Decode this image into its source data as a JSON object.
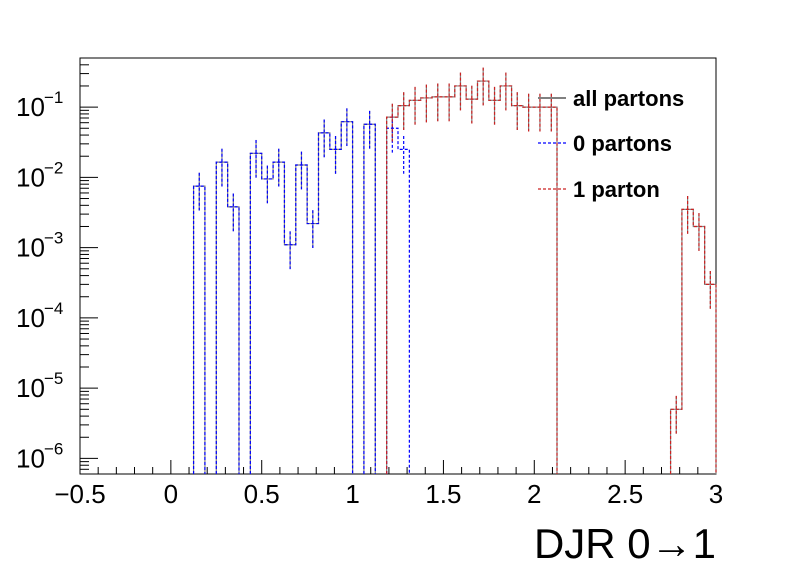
{
  "chart_data": {
    "type": "step-histogram",
    "xlabel": "DJR 0→1",
    "xlim": [
      -0.5,
      3.0
    ],
    "ylim": [
      6e-07,
      0.5
    ],
    "y_scale": "log",
    "grid": false,
    "legend_position": "top-right",
    "x_ticks": [
      "−0.5",
      "0",
      "0.5",
      "1",
      "1.5",
      "2",
      "2.5",
      "3"
    ],
    "x_tick_values": [
      -0.5,
      0,
      0.5,
      1,
      1.5,
      2,
      2.5,
      3
    ],
    "y_ticks": [
      {
        "base": "10",
        "exp": "−6",
        "value": 1e-06
      },
      {
        "base": "10",
        "exp": "−5",
        "value": 1e-05
      },
      {
        "base": "10",
        "exp": "−4",
        "value": 0.0001
      },
      {
        "base": "10",
        "exp": "−3",
        "value": 0.001
      },
      {
        "base": "10",
        "exp": "−2",
        "value": 0.01
      },
      {
        "base": "10",
        "exp": "−1",
        "value": 0.1
      }
    ],
    "bin_width": 0.0625,
    "series": [
      {
        "name": "all partons",
        "color": "#808080",
        "style": "solid",
        "bins": [
          [
            0.125,
            0.0075
          ],
          [
            0.25,
            0.0165
          ],
          [
            0.3125,
            0.0038
          ],
          [
            0.4375,
            0.022
          ],
          [
            0.5,
            0.0095
          ],
          [
            0.5625,
            0.0165
          ],
          [
            0.625,
            0.0011
          ],
          [
            0.6875,
            0.015
          ],
          [
            0.75,
            0.0022
          ],
          [
            0.8125,
            0.043
          ],
          [
            0.875,
            0.025
          ],
          [
            0.9375,
            0.062
          ],
          [
            1.0625,
            0.057
          ],
          [
            1.1875,
            0.072
          ],
          [
            1.25,
            0.105
          ],
          [
            1.3125,
            0.125
          ],
          [
            1.375,
            0.135
          ],
          [
            1.4375,
            0.14
          ],
          [
            1.5,
            0.14
          ],
          [
            1.5625,
            0.2
          ],
          [
            1.625,
            0.13
          ],
          [
            1.6875,
            0.235
          ],
          [
            1.75,
            0.125
          ],
          [
            1.8125,
            0.2
          ],
          [
            1.875,
            0.105
          ],
          [
            1.9375,
            0.1
          ],
          [
            2.0,
            0.1
          ],
          [
            2.0625,
            0.1
          ],
          [
            2.75,
            5e-06
          ],
          [
            2.8125,
            0.0035
          ],
          [
            2.875,
            0.002
          ],
          [
            2.9375,
            0.0003
          ]
        ]
      },
      {
        "name": "0 partons",
        "color": "#0000ff",
        "style": "dashed",
        "bins": [
          [
            0.125,
            0.0075
          ],
          [
            0.25,
            0.0165
          ],
          [
            0.3125,
            0.0038
          ],
          [
            0.4375,
            0.022
          ],
          [
            0.5,
            0.0095
          ],
          [
            0.5625,
            0.0165
          ],
          [
            0.625,
            0.0011
          ],
          [
            0.6875,
            0.015
          ],
          [
            0.75,
            0.0022
          ],
          [
            0.8125,
            0.043
          ],
          [
            0.875,
            0.025
          ],
          [
            0.9375,
            0.062
          ],
          [
            1.0625,
            0.057
          ],
          [
            1.1875,
            0.05
          ],
          [
            1.25,
            0.025
          ]
        ]
      },
      {
        "name": "1 parton",
        "color": "#cc2222",
        "style": "dashed",
        "bins": [
          [
            1.1875,
            0.072
          ],
          [
            1.25,
            0.105
          ],
          [
            1.3125,
            0.125
          ],
          [
            1.375,
            0.135
          ],
          [
            1.4375,
            0.14
          ],
          [
            1.5,
            0.14
          ],
          [
            1.5625,
            0.2
          ],
          [
            1.625,
            0.13
          ],
          [
            1.6875,
            0.235
          ],
          [
            1.75,
            0.125
          ],
          [
            1.8125,
            0.2
          ],
          [
            1.875,
            0.105
          ],
          [
            1.9375,
            0.1
          ],
          [
            2.0,
            0.1
          ],
          [
            2.0625,
            0.1
          ],
          [
            2.75,
            5e-06
          ],
          [
            2.8125,
            0.0035
          ],
          [
            2.875,
            0.002
          ],
          [
            2.9375,
            0.0003
          ]
        ]
      }
    ]
  }
}
